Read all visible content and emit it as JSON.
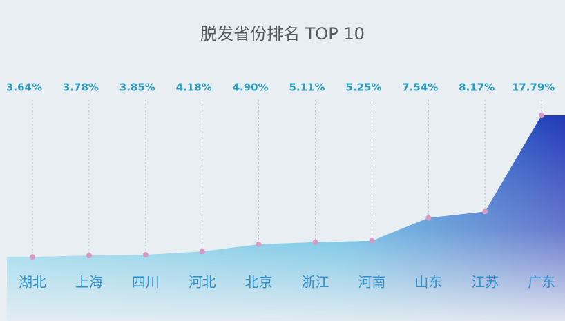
{
  "chart_data": {
    "type": "area",
    "title": "脱发省份排名 TOP 10",
    "categories": [
      "湖北",
      "上海",
      "四川",
      "河北",
      "北京",
      "浙江",
      "河南",
      "山东",
      "江苏",
      "广东"
    ],
    "values": [
      3.64,
      3.78,
      3.85,
      4.18,
      4.9,
      5.11,
      5.25,
      7.54,
      8.17,
      17.79
    ],
    "value_labels": [
      "3.64%",
      "3.78%",
      "3.85%",
      "4.18%",
      "4.90%",
      "5.11%",
      "5.25%",
      "7.54%",
      "8.17%",
      "17.79%"
    ],
    "color": "#2238b8"
  }
}
